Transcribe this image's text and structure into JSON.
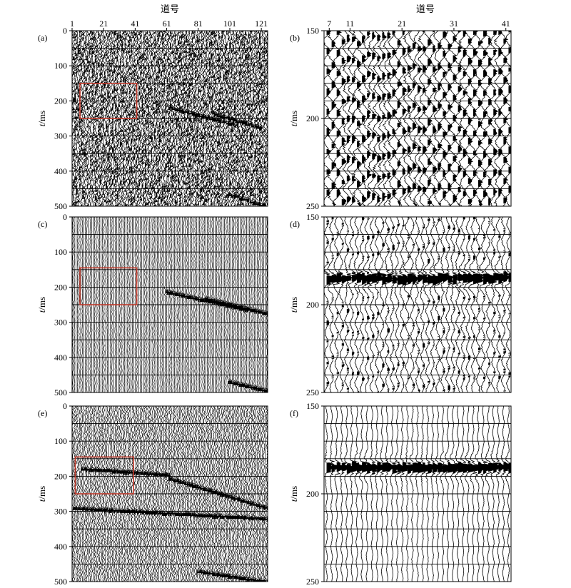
{
  "figure": {
    "x_axis_title": "道号",
    "y_axis_title_italic": "t",
    "y_axis_title_unit": "/ms"
  },
  "colors": {
    "trace": "#000000",
    "grid": "#000000",
    "box": "#c0392b",
    "background": "#ffffff"
  },
  "chart_data": [
    {
      "label": "(a)",
      "type": "heatmap",
      "style": "variable-density",
      "noise": "high",
      "show_top_ticks": true,
      "xticks": [
        1,
        21,
        41,
        61,
        81,
        101,
        121
      ],
      "xlim": [
        1,
        125
      ],
      "ylim": [
        0,
        500
      ],
      "yticks": [
        0,
        100,
        200,
        300,
        400,
        500
      ],
      "box": {
        "x": [
          6,
          42
        ],
        "y": [
          150,
          250
        ]
      },
      "events": [
        {
          "x": [
            62,
            105
          ],
          "t": [
            218,
            268
          ]
        },
        {
          "x": [
            90,
            120
          ],
          "t": [
            235,
            275
          ]
        },
        {
          "x": [
            100,
            125
          ],
          "t": [
            465,
            500
          ]
        }
      ]
    },
    {
      "label": "(b)",
      "type": "line",
      "style": "wiggle",
      "noise": "high",
      "show_top_ticks": true,
      "xticks": [
        7,
        11,
        21,
        31,
        41
      ],
      "xlim": [
        6,
        42
      ],
      "ylim": [
        150,
        250
      ],
      "yticks": [
        150,
        200,
        250
      ],
      "events": []
    },
    {
      "label": "(c)",
      "type": "heatmap",
      "style": "variable-density",
      "noise": "low",
      "show_top_ticks": false,
      "xlim": [
        1,
        125
      ],
      "ylim": [
        0,
        500
      ],
      "yticks": [
        0,
        100,
        200,
        300,
        400,
        500
      ],
      "box": {
        "x": [
          6,
          42
        ],
        "y": [
          145,
          250
        ]
      },
      "events": [
        {
          "x": [
            60,
            112
          ],
          "t": [
            212,
            265
          ]
        },
        {
          "x": [
            85,
            125
          ],
          "t": [
            230,
            275
          ]
        },
        {
          "x": [
            100,
            125
          ],
          "t": [
            468,
            495
          ]
        }
      ]
    },
    {
      "label": "(d)",
      "type": "line",
      "style": "wiggle",
      "noise": "medium",
      "show_top_ticks": false,
      "xlim": [
        6,
        42
      ],
      "ylim": [
        150,
        250
      ],
      "yticks": [
        150,
        200,
        250
      ],
      "events": [
        {
          "x": [
            6,
            42
          ],
          "t": [
            182,
            188
          ]
        }
      ]
    },
    {
      "label": "(e)",
      "type": "heatmap",
      "style": "variable-density",
      "noise": "medium",
      "show_top_ticks": false,
      "xlim": [
        1,
        125
      ],
      "ylim": [
        0,
        500
      ],
      "yticks": [
        0,
        100,
        200,
        300,
        400,
        500
      ],
      "box": {
        "x": [
          3,
          40
        ],
        "y": [
          145,
          250
        ]
      },
      "events": [
        {
          "x": [
            6,
            62
          ],
          "t": [
            178,
            195
          ]
        },
        {
          "x": [
            62,
            125
          ],
          "t": [
            205,
            290
          ]
        },
        {
          "x": [
            1,
            125
          ],
          "t": [
            290,
            320
          ]
        },
        {
          "x": [
            80,
            125
          ],
          "t": [
            470,
            500
          ]
        }
      ]
    },
    {
      "label": "(f)",
      "type": "line",
      "style": "wiggle",
      "noise": "low",
      "show_top_ticks": false,
      "xlim": [
        6,
        42
      ],
      "ylim": [
        150,
        250
      ],
      "yticks": [
        150,
        200,
        250
      ],
      "events": [
        {
          "x": [
            6,
            42
          ],
          "t": [
            180,
            190
          ]
        }
      ]
    }
  ]
}
